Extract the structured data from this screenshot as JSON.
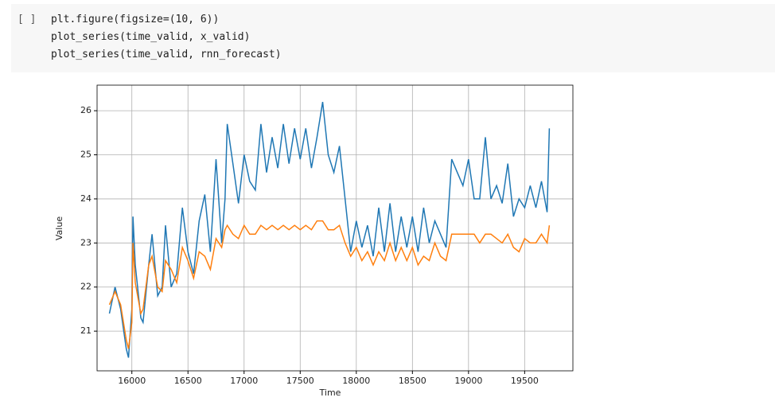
{
  "cell": {
    "prompt": "[ ]",
    "code": [
      "plt.figure(figsize=(10, 6))",
      "plot_series(time_valid, x_valid)",
      "plot_series(time_valid, rnn_forecast)"
    ]
  },
  "chart_data": {
    "type": "line",
    "x_label": "Time",
    "y_label": "Value",
    "x": [
      15800,
      15850,
      15900,
      15950,
      15970,
      16000,
      16010,
      16030,
      16080,
      16100,
      16150,
      16180,
      16230,
      16270,
      16300,
      16350,
      16400,
      16450,
      16500,
      16550,
      16600,
      16650,
      16700,
      16750,
      16800,
      16830,
      16850,
      16900,
      16950,
      17000,
      17050,
      17100,
      17150,
      17200,
      17250,
      17300,
      17350,
      17400,
      17450,
      17500,
      17550,
      17600,
      17650,
      17700,
      17750,
      17800,
      17850,
      17900,
      17950,
      18000,
      18050,
      18100,
      18150,
      18200,
      18250,
      18300,
      18350,
      18400,
      18450,
      18500,
      18550,
      18600,
      18650,
      18700,
      18750,
      18800,
      18850,
      18900,
      18950,
      19000,
      19050,
      19100,
      19150,
      19200,
      19250,
      19300,
      19350,
      19400,
      19450,
      19500,
      19550,
      19600,
      19650,
      19700,
      19720
    ],
    "series": [
      {
        "color": "#1f77b4",
        "values": [
          21.4,
          22.0,
          21.5,
          20.6,
          20.4,
          21.5,
          23.6,
          22.5,
          21.3,
          21.2,
          22.5,
          23.2,
          21.8,
          22.0,
          23.4,
          22.0,
          22.3,
          23.8,
          22.8,
          22.3,
          23.5,
          24.1,
          22.8,
          24.9,
          23.0,
          24.0,
          25.7,
          24.8,
          23.9,
          25.0,
          24.4,
          24.2,
          25.7,
          24.6,
          25.4,
          24.7,
          25.7,
          24.8,
          25.6,
          24.9,
          25.6,
          24.7,
          25.4,
          26.2,
          25.0,
          24.6,
          25.2,
          24.0,
          22.8,
          23.5,
          22.9,
          23.4,
          22.7,
          23.8,
          22.8,
          23.9,
          22.8,
          23.6,
          22.9,
          23.6,
          22.8,
          23.8,
          23.0,
          23.5,
          23.2,
          22.9,
          24.9,
          24.6,
          24.3,
          24.9,
          24.0,
          24.0,
          25.4,
          24.0,
          24.3,
          23.9,
          24.8,
          23.6,
          24.0,
          23.8,
          24.3,
          23.8,
          24.4,
          23.7,
          25.6
        ]
      },
      {
        "color": "#ff7f0e",
        "values": [
          21.6,
          21.9,
          21.6,
          20.8,
          20.6,
          21.2,
          23.0,
          22.1,
          21.4,
          21.5,
          22.5,
          22.7,
          22.0,
          21.9,
          22.6,
          22.4,
          22.1,
          22.9,
          22.6,
          22.2,
          22.8,
          22.7,
          22.4,
          23.1,
          22.9,
          23.3,
          23.4,
          23.2,
          23.1,
          23.4,
          23.2,
          23.2,
          23.4,
          23.3,
          23.4,
          23.3,
          23.4,
          23.3,
          23.4,
          23.3,
          23.4,
          23.3,
          23.5,
          23.5,
          23.3,
          23.3,
          23.4,
          23.0,
          22.7,
          22.9,
          22.6,
          22.8,
          22.5,
          22.8,
          22.6,
          23.0,
          22.6,
          22.9,
          22.6,
          22.9,
          22.5,
          22.7,
          22.6,
          23.0,
          22.7,
          22.6,
          23.2,
          23.2,
          23.2,
          23.2,
          23.2,
          23.0,
          23.2,
          23.2,
          23.1,
          23.0,
          23.2,
          22.9,
          22.8,
          23.1,
          23.0,
          23.0,
          23.2,
          23.0,
          23.4
        ]
      }
    ],
    "xlim": [
      15690,
      19930
    ],
    "ylim": [
      20.1,
      26.58
    ],
    "xticks": [
      16000,
      16500,
      17000,
      17500,
      18000,
      18500,
      19000,
      19500
    ],
    "yticks": [
      21,
      22,
      23,
      24,
      25,
      26
    ],
    "grid": true
  }
}
